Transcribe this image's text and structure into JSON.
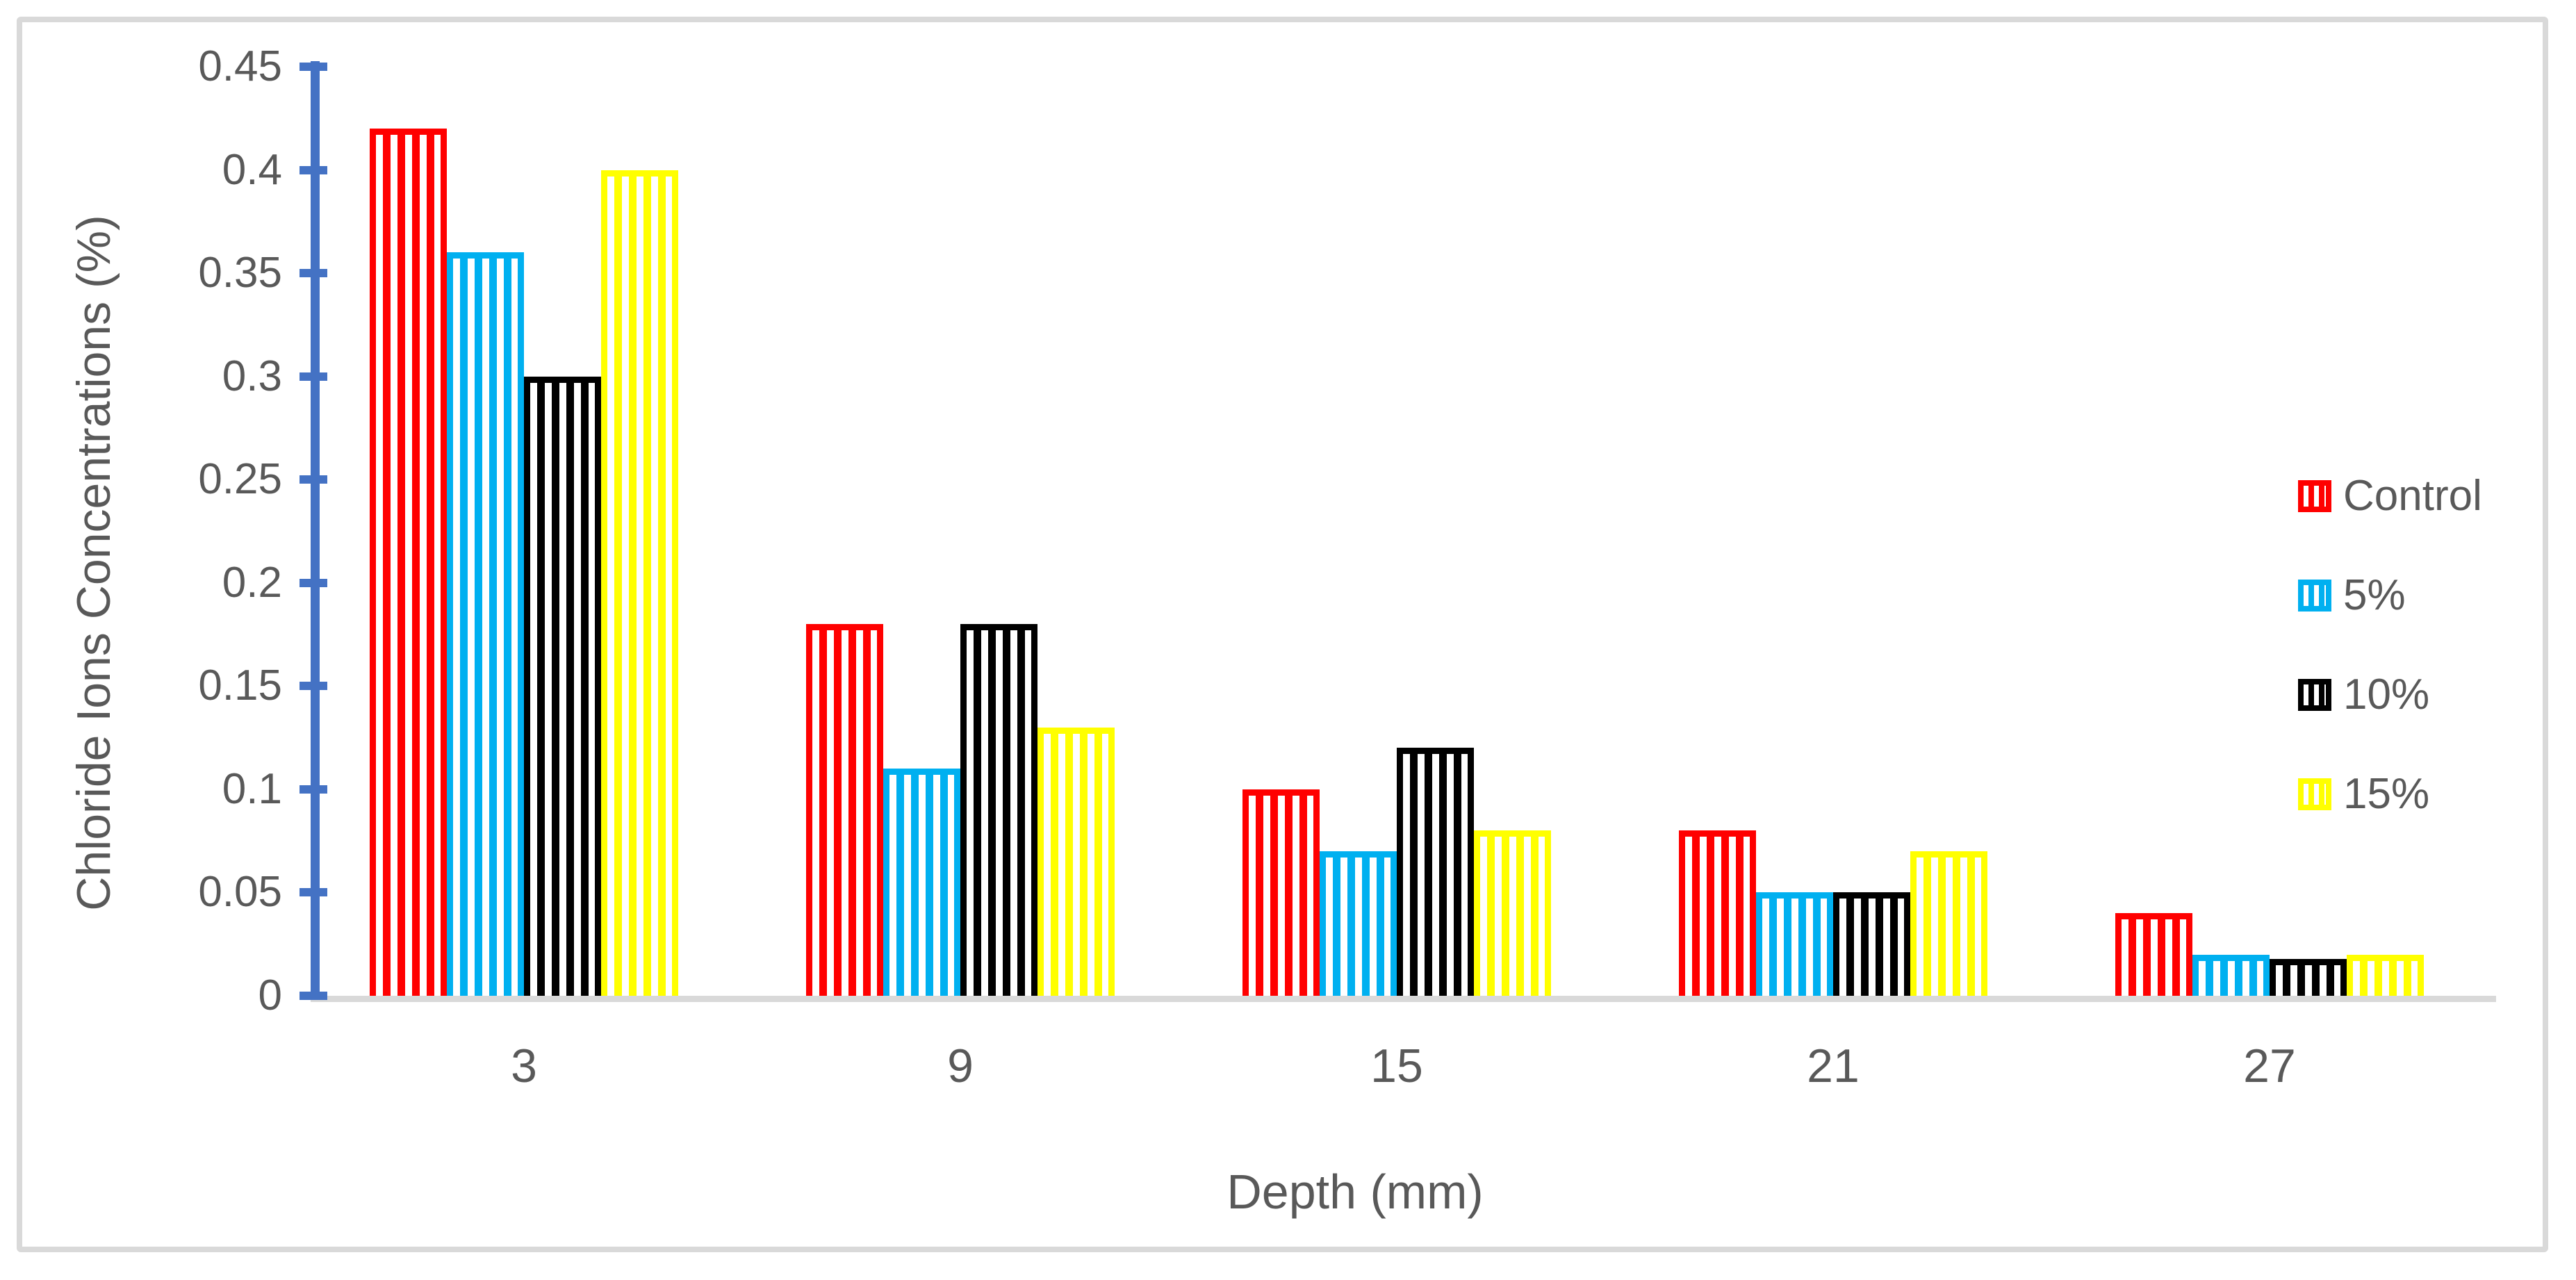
{
  "chart_data": {
    "type": "bar",
    "title": "",
    "categories": [
      "3",
      "9",
      "15",
      "21",
      "27"
    ],
    "series": [
      {
        "name": "Control",
        "color": "#FF0000",
        "values": [
          0.42,
          0.18,
          0.1,
          0.08,
          0.04
        ]
      },
      {
        "name": "5%",
        "color": "#00B0F0",
        "values": [
          0.36,
          0.11,
          0.07,
          0.05,
          0.02
        ]
      },
      {
        "name": "10%",
        "color": "#000000",
        "values": [
          0.3,
          0.18,
          0.12,
          0.05,
          0.018
        ]
      },
      {
        "name": "15%",
        "color": "#FFFF00",
        "values": [
          0.4,
          0.13,
          0.08,
          0.07,
          0.02
        ]
      }
    ],
    "xlabel": "Depth (mm)",
    "ylabel": "Chloride Ions Concentrations (%)",
    "ylim": [
      0,
      0.45
    ],
    "ytick_step": 0.05,
    "ytick_labels": [
      "0",
      "0.05",
      "0.1",
      "0.15",
      "0.2",
      "0.25",
      "0.3",
      "0.35",
      "0.4",
      "0.45"
    ],
    "legend_position": "right",
    "grid": false,
    "bar_pattern": "vertical-stripes"
  },
  "colors": {
    "axis_blue": "#4472C4",
    "text_gray": "#595959",
    "line_gray": "#D9D9D9",
    "background": "#FFFFFF"
  }
}
